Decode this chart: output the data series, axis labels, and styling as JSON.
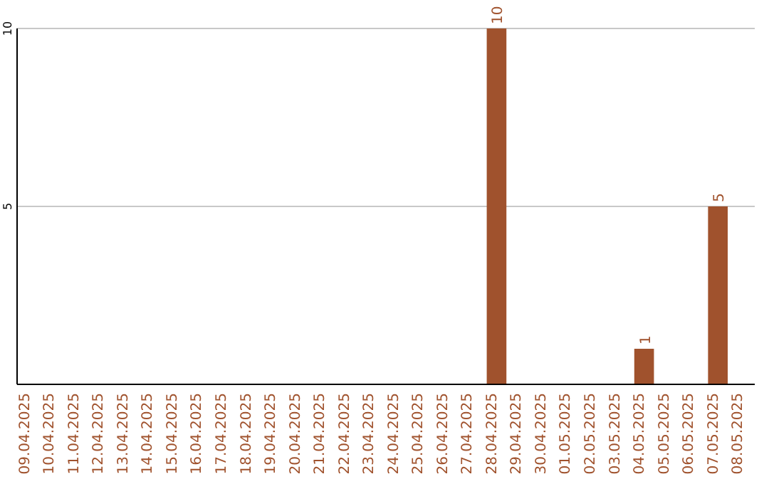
{
  "chart_data": {
    "type": "bar",
    "categories": [
      "09.04.2025",
      "10.04.2025",
      "11.04.2025",
      "12.04.2025",
      "13.04.2025",
      "14.04.2025",
      "15.04.2025",
      "16.04.2025",
      "17.04.2025",
      "18.04.2025",
      "19.04.2025",
      "20.04.2025",
      "21.04.2025",
      "22.04.2025",
      "23.04.2025",
      "24.04.2025",
      "25.04.2025",
      "26.04.2025",
      "27.04.2025",
      "28.04.2025",
      "29.04.2025",
      "30.04.2025",
      "01.05.2025",
      "02.05.2025",
      "03.05.2025",
      "04.05.2025",
      "05.05.2025",
      "06.05.2025",
      "07.05.2025",
      "08.05.2025"
    ],
    "values": [
      0,
      0,
      0,
      0,
      0,
      0,
      0,
      0,
      0,
      0,
      0,
      0,
      0,
      0,
      0,
      0,
      0,
      0,
      0,
      10,
      0,
      0,
      0,
      0,
      0,
      1,
      0,
      0,
      5,
      0
    ],
    "value_labels": [
      null,
      null,
      null,
      null,
      null,
      null,
      null,
      null,
      null,
      null,
      null,
      null,
      null,
      null,
      null,
      null,
      null,
      null,
      null,
      "10",
      null,
      null,
      null,
      null,
      null,
      "1",
      null,
      null,
      "5",
      null
    ],
    "color": "#a0522d",
    "ylim": [
      0,
      10
    ],
    "yticks": [
      5,
      10
    ],
    "grid": "y"
  }
}
